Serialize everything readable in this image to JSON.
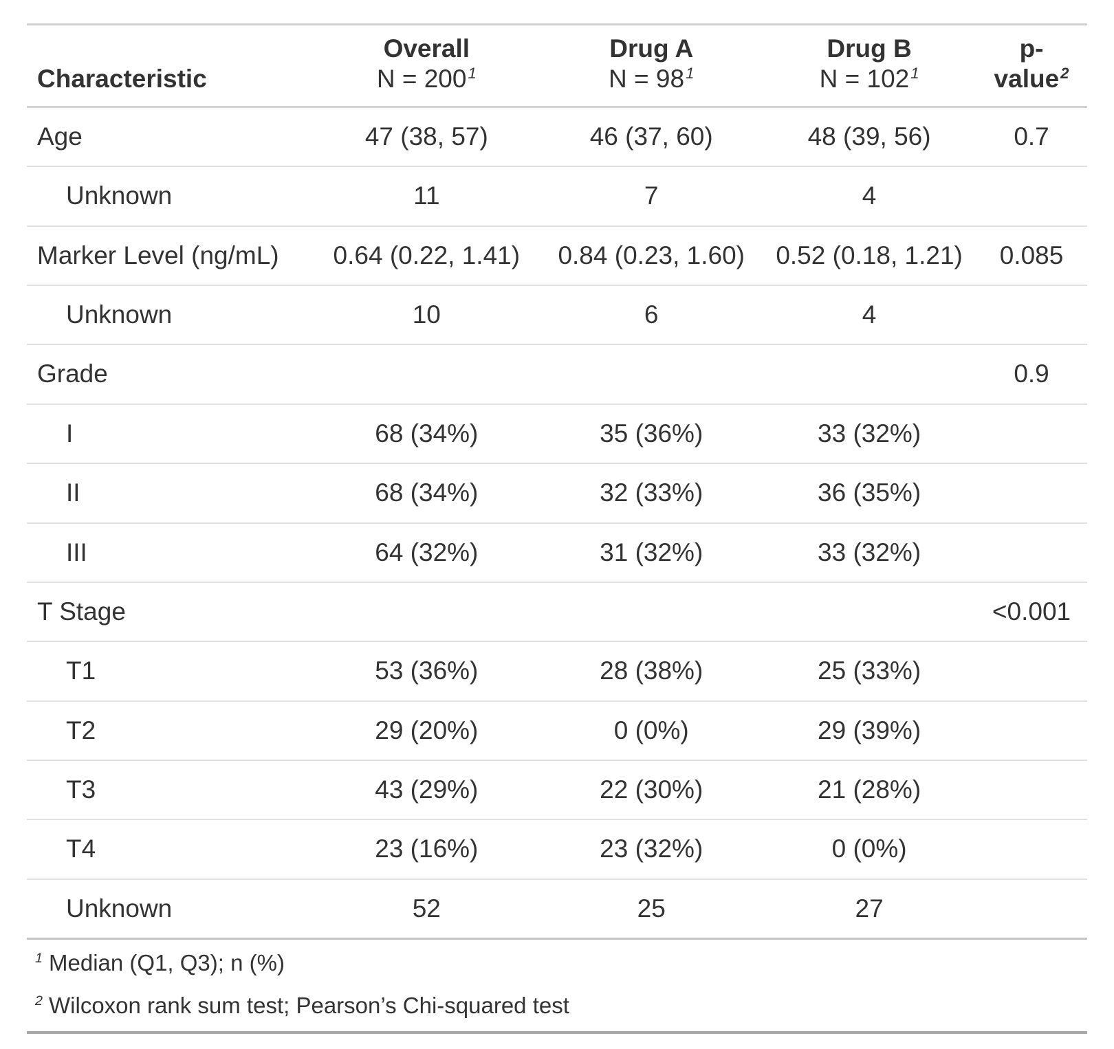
{
  "chart_data": {
    "type": "table",
    "columns": [
      {
        "id": "label",
        "label": "Characteristic",
        "sub": "",
        "footnote_mark": ""
      },
      {
        "id": "overall",
        "label": "Overall",
        "sub": "N = 200",
        "footnote_mark": "1"
      },
      {
        "id": "drug_a",
        "label": "Drug A",
        "sub": "N = 98",
        "footnote_mark": "1"
      },
      {
        "id": "drug_b",
        "label": "Drug B",
        "sub": "N = 102",
        "footnote_mark": "1"
      },
      {
        "id": "p",
        "label": "p-value",
        "sub": "",
        "footnote_mark": "2"
      }
    ],
    "rows": [
      {
        "label": "Age",
        "indent": false,
        "overall": "47 (38, 57)",
        "drug_a": "46 (37, 60)",
        "drug_b": "48 (39, 56)",
        "p": "0.7"
      },
      {
        "label": "Unknown",
        "indent": true,
        "overall": "11",
        "drug_a": "7",
        "drug_b": "4",
        "p": ""
      },
      {
        "label": "Marker Level (ng/mL)",
        "indent": false,
        "overall": "0.64 (0.22, 1.41)",
        "drug_a": "0.84 (0.23, 1.60)",
        "drug_b": "0.52 (0.18, 1.21)",
        "p": "0.085"
      },
      {
        "label": "Unknown",
        "indent": true,
        "overall": "10",
        "drug_a": "6",
        "drug_b": "4",
        "p": ""
      },
      {
        "label": "Grade",
        "indent": false,
        "overall": "",
        "drug_a": "",
        "drug_b": "",
        "p": "0.9"
      },
      {
        "label": "I",
        "indent": true,
        "overall": "68 (34%)",
        "drug_a": "35 (36%)",
        "drug_b": "33 (32%)",
        "p": ""
      },
      {
        "label": "II",
        "indent": true,
        "overall": "68 (34%)",
        "drug_a": "32 (33%)",
        "drug_b": "36 (35%)",
        "p": ""
      },
      {
        "label": "III",
        "indent": true,
        "overall": "64 (32%)",
        "drug_a": "31 (32%)",
        "drug_b": "33 (32%)",
        "p": ""
      },
      {
        "label": "T Stage",
        "indent": false,
        "overall": "",
        "drug_a": "",
        "drug_b": "",
        "p": "<0.001"
      },
      {
        "label": "T1",
        "indent": true,
        "overall": "53 (36%)",
        "drug_a": "28 (38%)",
        "drug_b": "25 (33%)",
        "p": ""
      },
      {
        "label": "T2",
        "indent": true,
        "overall": "29 (20%)",
        "drug_a": "0 (0%)",
        "drug_b": "29 (39%)",
        "p": ""
      },
      {
        "label": "T3",
        "indent": true,
        "overall": "43 (29%)",
        "drug_a": "22 (30%)",
        "drug_b": "21 (28%)",
        "p": ""
      },
      {
        "label": "T4",
        "indent": true,
        "overall": "23 (16%)",
        "drug_a": "23 (32%)",
        "drug_b": "0 (0%)",
        "p": ""
      },
      {
        "label": "Unknown",
        "indent": true,
        "overall": "52",
        "drug_a": "25",
        "drug_b": "27",
        "p": ""
      }
    ],
    "footnotes": [
      {
        "mark": "1",
        "text": "Median (Q1, Q3); n (%)"
      },
      {
        "mark": "2",
        "text": "Wilcoxon rank sum test; Pearson’s Chi-squared test"
      }
    ],
    "colors": {
      "text": "#333333",
      "background": "#FFFFFF",
      "rule_row": "#E0E0E0",
      "rule_header": "#D3D3D3",
      "rule_body_bottom": "#C4C4C4",
      "rule_table_bottom": "#A8A8A8"
    }
  }
}
